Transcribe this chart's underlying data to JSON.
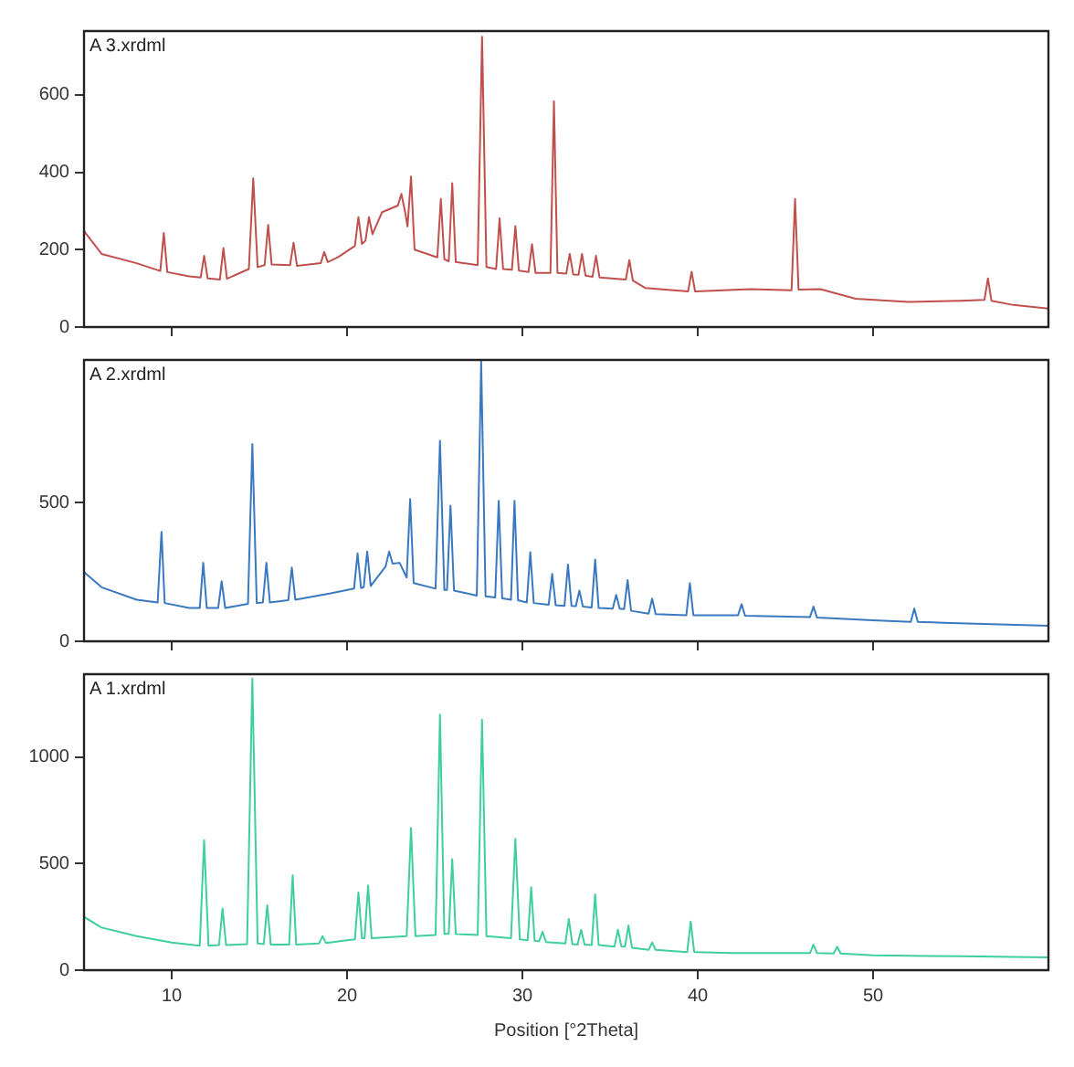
{
  "chart_data": [
    {
      "type": "line",
      "title": "A 3.xrdml",
      "xlim": [
        5,
        60
      ],
      "xticks": [
        10,
        20,
        30,
        40,
        50
      ],
      "ylim": [
        0,
        765
      ],
      "yticks": [
        0,
        200,
        400,
        600
      ],
      "tick_labels": "y",
      "marker": "none",
      "series": [
        {
          "color": "#c0504d",
          "x": [
            5,
            6,
            8,
            9.35,
            9.55,
            9.75,
            11,
            11.65,
            11.85,
            12.05,
            12.75,
            12.95,
            13.15,
            14.4,
            14.65,
            14.9,
            15.3,
            15.5,
            15.7,
            16.75,
            16.95,
            17.15,
            18.5,
            18.7,
            18.9,
            19.5,
            20.45,
            20.65,
            20.85,
            21.05,
            21.25,
            21.45,
            22,
            22.9,
            23.1,
            23.3,
            23.45,
            23.65,
            23.85,
            24.5,
            25.15,
            25.35,
            25.55,
            25.8,
            26.0,
            26.2,
            27.45,
            27.7,
            27.95,
            28.5,
            28.7,
            28.9,
            29.4,
            29.6,
            29.8,
            30.35,
            30.55,
            30.75,
            31.6,
            31.8,
            32.0,
            32.5,
            32.7,
            32.9,
            33.2,
            33.4,
            33.6,
            34.0,
            34.2,
            34.4,
            35.9,
            36.1,
            36.3,
            37,
            39.45,
            39.65,
            39.85,
            43,
            45.35,
            45.55,
            45.75,
            47,
            49,
            52,
            55,
            56.35,
            56.55,
            56.75,
            58,
            60
          ],
          "values": [
            248,
            189,
            165,
            145,
            243,
            142,
            131,
            128,
            184,
            126,
            123,
            204,
            125,
            150,
            384,
            155,
            160,
            264,
            162,
            160,
            218,
            158,
            165,
            194,
            168,
            181,
            210,
            284,
            215,
            223,
            284,
            240,
            297,
            314,
            344,
            300,
            260,
            389,
            200,
            190,
            180,
            331,
            175,
            170,
            372,
            168,
            160,
            750,
            155,
            150,
            281,
            150,
            148,
            261,
            146,
            142,
            214,
            140,
            140,
            583,
            140,
            138,
            189,
            136,
            135,
            189,
            133,
            130,
            184,
            128,
            123,
            173,
            120,
            101,
            92,
            143,
            92,
            98,
            95,
            331,
            97,
            98,
            73,
            65,
            68,
            70,
            126,
            68,
            57,
            48
          ]
        }
      ]
    },
    {
      "type": "line",
      "title": "A 2.xrdml",
      "xlim": [
        5,
        60
      ],
      "xticks": [
        10,
        20,
        30,
        40,
        50
      ],
      "ylim": [
        0,
        1015
      ],
      "yticks": [
        0,
        500
      ],
      "tick_labels": "y",
      "marker": "none",
      "series": [
        {
          "color": "#3a78c0",
          "x": [
            5,
            6,
            8,
            9.2,
            9.42,
            9.6,
            11,
            11.6,
            11.8,
            12,
            12.65,
            12.85,
            13.05,
            14.35,
            14.6,
            14.85,
            15.2,
            15.4,
            15.6,
            16.65,
            16.85,
            17.05,
            19,
            20.4,
            20.6,
            20.8,
            20.95,
            21.15,
            21.35,
            22.2,
            22.4,
            22.6,
            23.0,
            23.4,
            23.6,
            23.8,
            25.05,
            25.3,
            25.55,
            25.7,
            25.9,
            26.1,
            27.4,
            27.65,
            27.9,
            28.45,
            28.65,
            28.85,
            29.35,
            29.55,
            29.75,
            30.25,
            30.45,
            30.65,
            31.5,
            31.7,
            31.9,
            32.4,
            32.6,
            32.8,
            33.05,
            33.25,
            33.45,
            33.95,
            34.15,
            34.35,
            35.15,
            35.35,
            35.55,
            35.8,
            36.0,
            36.2,
            37.2,
            37.4,
            37.6,
            39.35,
            39.55,
            39.75,
            42.3,
            42.5,
            42.7,
            46.4,
            46.6,
            46.8,
            50,
            52.15,
            52.35,
            52.55,
            54,
            60
          ],
          "values": [
            250,
            195,
            150,
            140,
            395,
            138,
            120,
            120,
            283,
            120,
            120,
            217,
            120,
            135,
            712,
            138,
            140,
            283,
            140,
            148,
            266,
            150,
            172,
            190,
            317,
            192,
            195,
            324,
            200,
            270,
            324,
            280,
            283,
            230,
            513,
            210,
            190,
            723,
            185,
            185,
            489,
            183,
            165,
            1009,
            162,
            158,
            507,
            155,
            150,
            507,
            148,
            140,
            321,
            138,
            132,
            243,
            130,
            128,
            277,
            128,
            127,
            183,
            125,
            122,
            295,
            120,
            118,
            167,
            118,
            116,
            221,
            110,
            100,
            154,
            98,
            94,
            210,
            94,
            94,
            134,
            92,
            87,
            125,
            86,
            76,
            70,
            118,
            70,
            67,
            56
          ]
        }
      ]
    },
    {
      "type": "line",
      "title": "A 1.xrdml",
      "xlabel": "Position [°2Theta]",
      "xlim": [
        5,
        60
      ],
      "xticks": [
        10,
        20,
        30,
        40,
        50
      ],
      "ylim": [
        0,
        1390
      ],
      "yticks": [
        0,
        500,
        1000
      ],
      "marker": "none",
      "series": [
        {
          "color": "#3fcf9c",
          "x": [
            5,
            6,
            8,
            10,
            11.6,
            11.85,
            12.1,
            12.7,
            12.9,
            13.1,
            14.3,
            14.6,
            14.9,
            15.25,
            15.45,
            15.65,
            16.7,
            16.9,
            17.1,
            18.4,
            18.6,
            18.8,
            20.0,
            20.45,
            20.65,
            20.85,
            21.0,
            21.2,
            21.4,
            23.4,
            23.65,
            23.9,
            25.05,
            25.3,
            25.55,
            25.8,
            26.0,
            26.2,
            27.45,
            27.7,
            27.95,
            29.35,
            29.6,
            29.85,
            30.3,
            30.5,
            30.7,
            30.95,
            31.15,
            31.35,
            32.45,
            32.65,
            32.85,
            33.15,
            33.35,
            33.55,
            33.95,
            34.15,
            34.35,
            35.25,
            35.45,
            35.65,
            35.85,
            36.05,
            36.25,
            37.2,
            37.4,
            37.6,
            39.4,
            39.6,
            39.8,
            42,
            46.4,
            46.6,
            46.8,
            47.75,
            47.95,
            48.15,
            50,
            55,
            60
          ],
          "values": [
            250,
            200,
            160,
            130,
            115,
            610,
            115,
            118,
            290,
            118,
            122,
            1370,
            125,
            122,
            305,
            120,
            120,
            446,
            120,
            125,
            160,
            128,
            140,
            145,
            365,
            150,
            150,
            398,
            150,
            160,
            668,
            160,
            165,
            1200,
            170,
            170,
            521,
            170,
            165,
            1177,
            160,
            150,
            617,
            145,
            140,
            389,
            138,
            135,
            180,
            132,
            125,
            240,
            122,
            120,
            190,
            120,
            118,
            356,
            118,
            110,
            190,
            110,
            110,
            210,
            105,
            95,
            130,
            95,
            85,
            228,
            85,
            80,
            80,
            120,
            80,
            78,
            110,
            78,
            70,
            65,
            60
          ]
        }
      ]
    }
  ]
}
